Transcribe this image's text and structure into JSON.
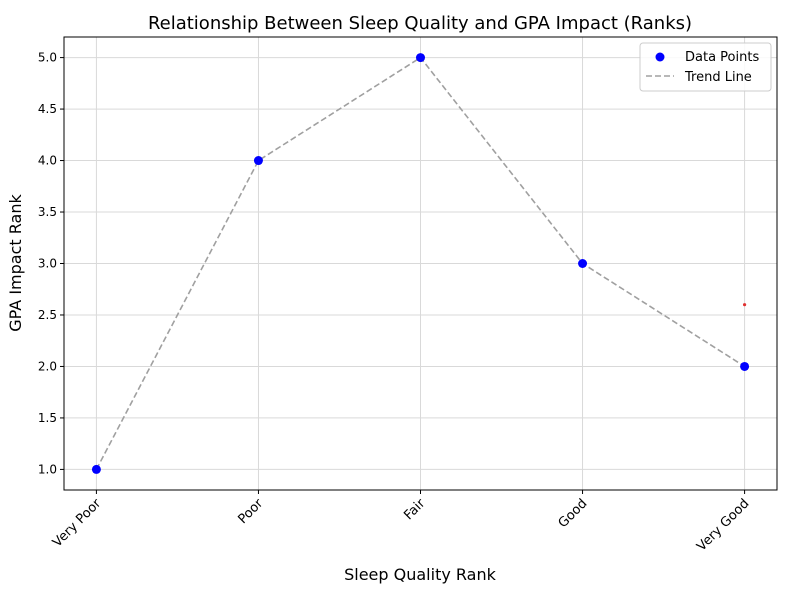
{
  "chart_data": {
    "type": "scatter",
    "title": "Relationship Between Sleep Quality and GPA Impact (Ranks)",
    "xlabel": "Sleep Quality Rank",
    "ylabel": "GPA Impact Rank",
    "categories": [
      "Very Poor",
      "Poor",
      "Fair",
      "Good",
      "Very Good"
    ],
    "x": [
      1,
      2,
      3,
      4,
      5
    ],
    "series": [
      {
        "name": "Data Points",
        "kind": "scatter",
        "values": [
          1,
          4,
          5,
          3,
          2
        ],
        "color": "#0000ff"
      },
      {
        "name": "Trend Line",
        "kind": "line",
        "style": "dashed",
        "values": [
          1,
          4,
          5,
          3,
          2
        ],
        "color": "#a0a0a0"
      }
    ],
    "extra_marks": [
      {
        "x": 5,
        "y": 2.6,
        "color": "#e03030"
      }
    ],
    "xlim": [
      0.8,
      5.2
    ],
    "ylim": [
      0.8,
      5.2
    ],
    "yticks": [
      "1.0",
      "1.5",
      "2.0",
      "2.5",
      "3.0",
      "3.5",
      "4.0",
      "4.5",
      "5.0"
    ],
    "grid": true,
    "legend_position": "top-right"
  }
}
